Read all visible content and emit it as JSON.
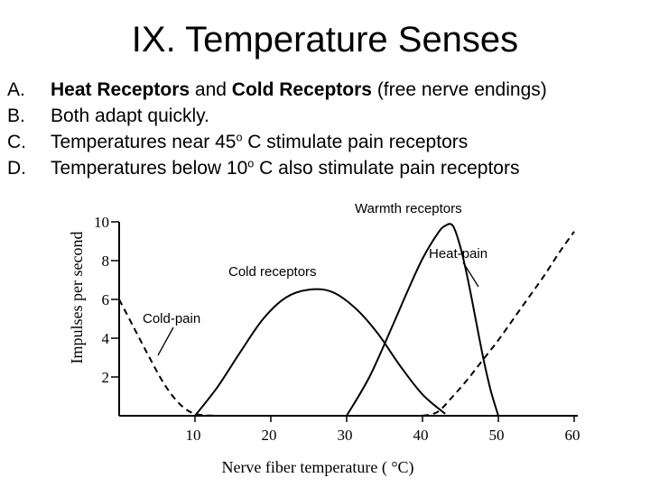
{
  "slide": {
    "title": "IX. Temperature Senses",
    "bullets": [
      {
        "marker": "A.",
        "bold_1": "Heat Receptors",
        "text_1": " and ",
        "bold_2": "Cold Receptors",
        "text_2": " (free nerve endings)"
      },
      {
        "marker": "B.",
        "text": "Both adapt quickly."
      },
      {
        "marker": "C.",
        "text_before": "Temperatures near 45",
        "sup": "o",
        "text_after": " C stimulate pain receptors"
      },
      {
        "marker": "D.",
        "text_before": "Temperatures below 10",
        "sup": "o",
        "text_after": " C also stimulate pain receptors"
      }
    ]
  },
  "chart_data": {
    "type": "line",
    "ylabel": "Impulses per second",
    "xlabel": "Nerve fiber temperature ( °C)",
    "xlim": [
      0,
      60
    ],
    "ylim": [
      0,
      10
    ],
    "x_ticks": [
      10,
      20,
      30,
      40,
      50,
      60
    ],
    "y_ticks": [
      2,
      4,
      6,
      8,
      10
    ],
    "series": [
      {
        "name": "Cold-pain",
        "dashed": true,
        "x": [
          0,
          2,
          4,
          6,
          8,
          10,
          13
        ],
        "y": [
          6.0,
          4.5,
          3.0,
          1.6,
          0.6,
          0.1,
          0.0
        ]
      },
      {
        "name": "Cold receptors",
        "dashed": false,
        "x": [
          10,
          13,
          16,
          19,
          22,
          25,
          28,
          31,
          34,
          37,
          40,
          43
        ],
        "y": [
          0.0,
          1.5,
          3.3,
          5.0,
          6.1,
          6.5,
          6.4,
          5.6,
          4.3,
          2.6,
          1.1,
          0.1
        ]
      },
      {
        "name": "Warmth receptors",
        "dashed": false,
        "x": [
          30,
          33,
          36,
          38,
          40,
          42,
          43,
          44,
          45,
          46,
          47,
          48,
          49,
          50
        ],
        "y": [
          0.0,
          2.0,
          4.6,
          6.4,
          8.1,
          9.4,
          9.8,
          9.8,
          8.7,
          7.0,
          5.0,
          3.0,
          1.3,
          0.0
        ]
      },
      {
        "name": "Heat-pain",
        "dashed": true,
        "x": [
          40,
          42,
          44,
          46,
          48,
          50,
          52,
          54,
          56,
          58,
          60
        ],
        "y": [
          0.0,
          0.2,
          1.0,
          1.9,
          2.9,
          3.9,
          5.0,
          6.1,
          7.2,
          8.4,
          9.5
        ]
      }
    ],
    "annotations": [
      "Warmth receptors",
      "Heat-pain",
      "Cold receptors",
      "Cold-pain"
    ]
  }
}
